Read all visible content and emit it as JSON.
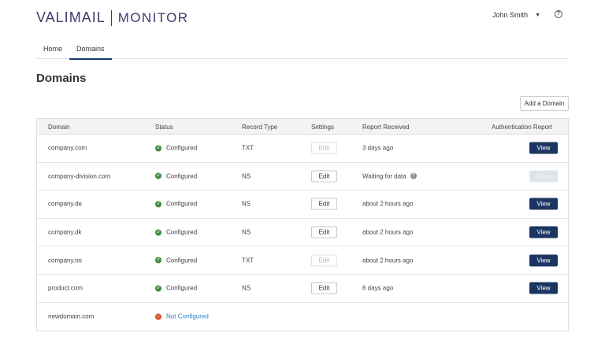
{
  "header": {
    "brand": "VALIMAIL",
    "product": "MONITOR",
    "user_name": "John Smith",
    "user_caret_icon": "caret-down-icon",
    "help_icon": "help-circle-icon",
    "help_glyph": "?"
  },
  "nav": {
    "tabs": [
      {
        "label": "Home",
        "active": false
      },
      {
        "label": "Domains",
        "active": true
      }
    ]
  },
  "page": {
    "title": "Domains",
    "add_button": "Add a Domain"
  },
  "table": {
    "columns": {
      "domain": "Domain",
      "status": "Status",
      "record_type": "Record Type",
      "settings": "Settings",
      "report_received": "Report Received",
      "auth_report": "Authentication Report"
    },
    "rows": [
      {
        "domain": "company.com",
        "status": "Configured",
        "status_state": "ok",
        "record_type": "TXT",
        "settings": "Edit",
        "settings_enabled": false,
        "report": "3 days ago",
        "report_help": false,
        "view": "View",
        "view_enabled": true
      },
      {
        "domain": "company-division.com",
        "status": "Configured",
        "status_state": "ok",
        "record_type": "NS",
        "settings": "Edit",
        "settings_enabled": true,
        "report": "Waiting for data",
        "report_help": true,
        "view": "View",
        "view_enabled": false
      },
      {
        "domain": "company.de",
        "status": "Configured",
        "status_state": "ok",
        "record_type": "NS",
        "settings": "Edit",
        "settings_enabled": true,
        "report": "about 2 hours ago",
        "report_help": false,
        "view": "View",
        "view_enabled": true
      },
      {
        "domain": "company.dk",
        "status": "Configured",
        "status_state": "ok",
        "record_type": "NS",
        "settings": "Edit",
        "settings_enabled": true,
        "report": "about 2 hours ago",
        "report_help": false,
        "view": "View",
        "view_enabled": true
      },
      {
        "domain": "company.no",
        "status": "Configured",
        "status_state": "ok",
        "record_type": "TXT",
        "settings": "Edit",
        "settings_enabled": false,
        "report": "about 2 hours ago",
        "report_help": false,
        "view": "View",
        "view_enabled": true
      },
      {
        "domain": "product.com",
        "status": "Configured",
        "status_state": "ok",
        "record_type": "NS",
        "settings": "Edit",
        "settings_enabled": true,
        "report": "6 days ago",
        "report_help": false,
        "view": "View",
        "view_enabled": true
      },
      {
        "domain": "newdomain.com",
        "status": "Not Configured",
        "status_state": "bad",
        "record_type": "",
        "settings": "",
        "settings_enabled": false,
        "report": "",
        "report_help": false,
        "view": "",
        "view_enabled": false
      }
    ]
  },
  "colors": {
    "brand": "#3c3b6e",
    "primary_button": "#1b3563",
    "status_ok": "#3e8e41",
    "status_error": "#d9542f",
    "link": "#2f7fc1"
  }
}
